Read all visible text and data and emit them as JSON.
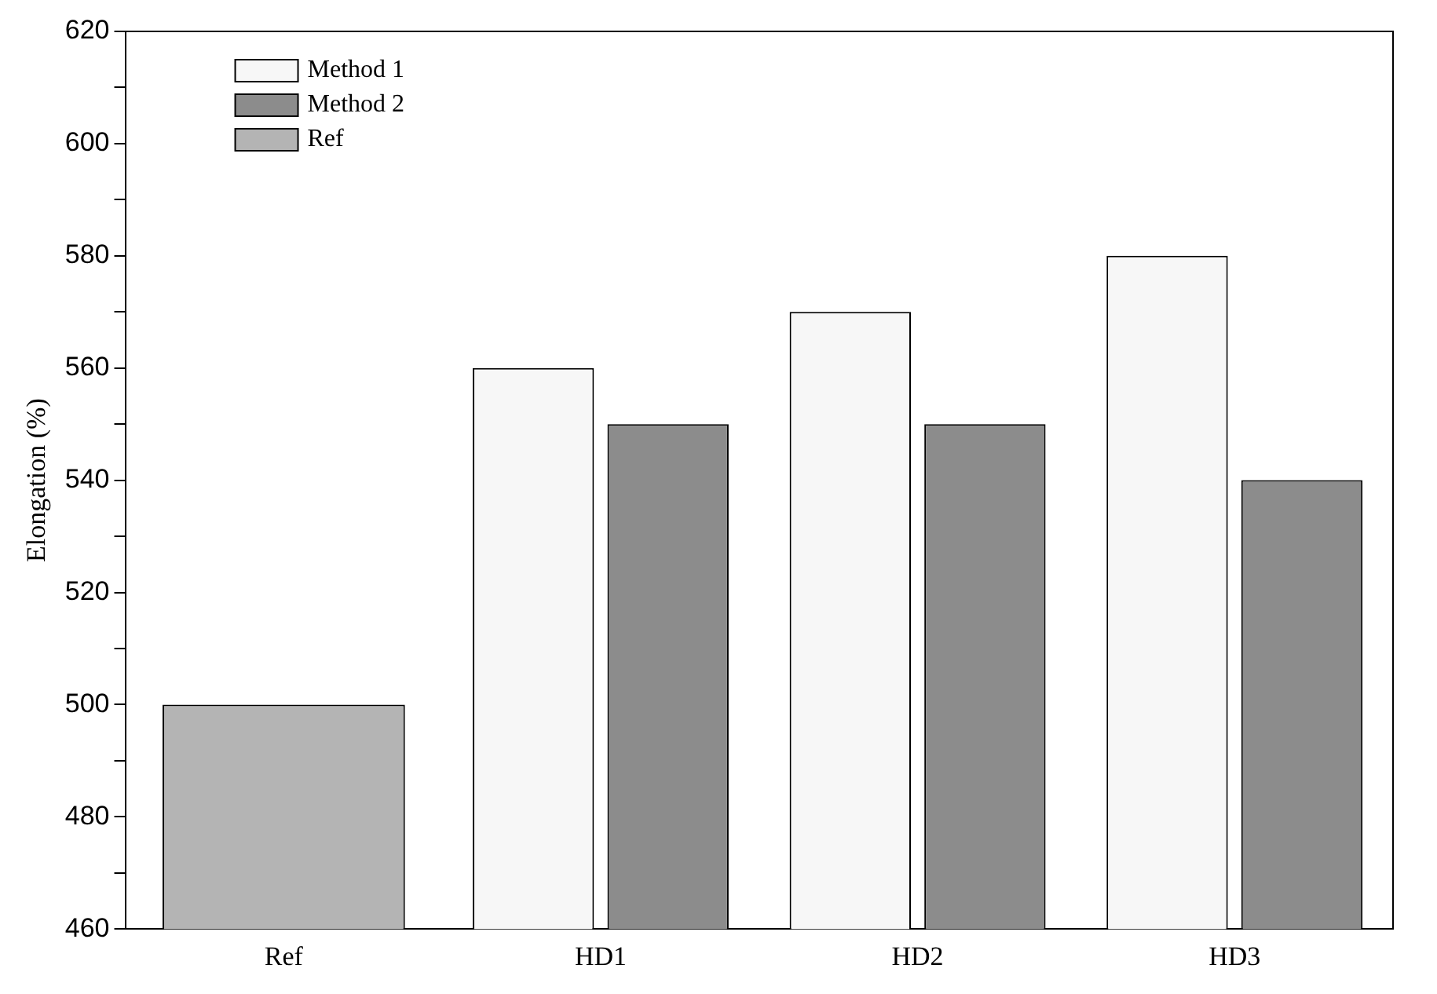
{
  "chart_data": {
    "type": "bar",
    "ylabel": "Elongation (%)",
    "categories": [
      "Ref",
      "HD1",
      "HD2",
      "HD3"
    ],
    "series": [
      {
        "name": "Method 1",
        "color": "#f7f7f7",
        "values": [
          null,
          560,
          570,
          580
        ]
      },
      {
        "name": "Method 2",
        "color": "#8c8c8c",
        "values": [
          null,
          550,
          550,
          540
        ]
      },
      {
        "name": "Ref",
        "color": "#b4b4b4",
        "values": [
          500,
          null,
          null,
          null
        ]
      }
    ],
    "ylim": [
      460,
      620
    ],
    "yticks": [
      460,
      {
        "value": 470,
        "label": null
      },
      480,
      {
        "value": 490,
        "label": null
      },
      500,
      {
        "value": 510,
        "label": null
      },
      520,
      {
        "value": 530,
        "label": null
      },
      540,
      {
        "value": 550,
        "label": null
      },
      560,
      {
        "value": 570,
        "label": null
      },
      580,
      {
        "value": 590,
        "label": null
      },
      600,
      {
        "value": 610,
        "label": null
      },
      620
    ],
    "grid": false,
    "legend": "top left"
  }
}
